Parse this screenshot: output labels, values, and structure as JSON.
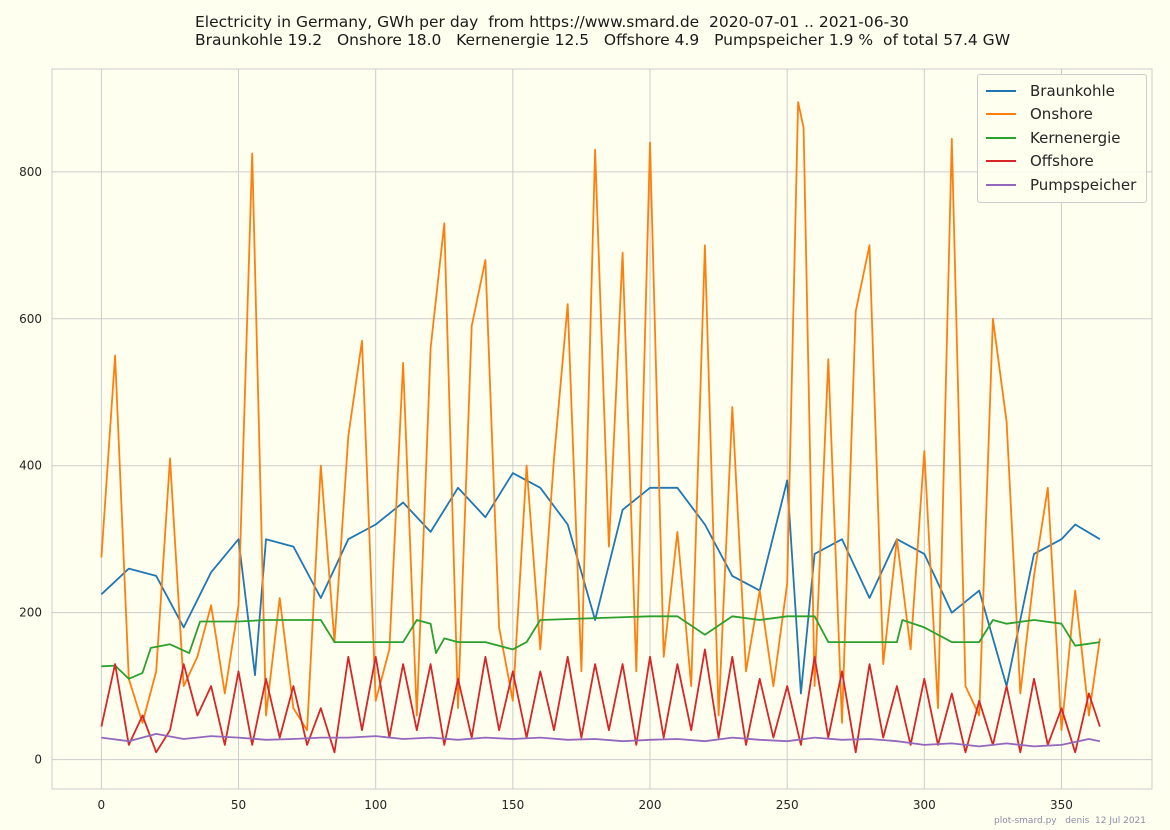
{
  "title_line1": "Electricity in Germany, GWh per day  from https://www.smard.de  2020-07-01 .. 2021-06-30",
  "title_line2": "Braunkohle 19.2   Onshore 18.0   Kernenergie 12.5   Offshore 4.9   Pumpspeicher 1.9 %  of total 57.4 GW",
  "footer": "plot-smard.py   denis  12 Jul 2021",
  "colors": {
    "background": "#fffff0",
    "grid": "#cccccc",
    "Braunkohle": "#1f77b4",
    "Onshore": "#ff7f0e",
    "Kernenergie": "#2ca02c",
    "Offshore": "#d62728",
    "Pumpspeicher": "#9467bd"
  },
  "chart_data": {
    "type": "line",
    "title": "Electricity in Germany, GWh per day  from https://www.smard.de  2020-07-01 .. 2021-06-30",
    "xlabel": "",
    "ylabel": "",
    "xlim": [
      -18,
      383
    ],
    "ylim": [
      -40,
      940
    ],
    "xticks": [
      "0",
      "50",
      "100",
      "150",
      "200",
      "250",
      "300",
      "350"
    ],
    "yticks": [
      "0",
      "200",
      "400",
      "600",
      "800"
    ],
    "grid": true,
    "legend": "top-right",
    "series": [
      {
        "name": "Braunkohle",
        "x": [
          0,
          10,
          20,
          30,
          40,
          50,
          56,
          60,
          70,
          80,
          90,
          100,
          110,
          120,
          130,
          140,
          150,
          160,
          170,
          180,
          190,
          200,
          210,
          220,
          230,
          240,
          250,
          255,
          260,
          270,
          280,
          290,
          300,
          310,
          320,
          330,
          340,
          350,
          355,
          364
        ],
        "values": [
          225,
          260,
          250,
          180,
          255,
          300,
          115,
          300,
          290,
          220,
          300,
          320,
          350,
          310,
          370,
          330,
          390,
          370,
          320,
          190,
          340,
          370,
          370,
          320,
          250,
          230,
          380,
          90,
          280,
          300,
          220,
          300,
          280,
          200,
          230,
          100,
          280,
          300,
          320,
          300
        ]
      },
      {
        "name": "Onshore",
        "x": [
          0,
          5,
          10,
          15,
          20,
          25,
          30,
          35,
          40,
          45,
          50,
          55,
          60,
          65,
          70,
          75,
          80,
          85,
          90,
          95,
          100,
          105,
          110,
          115,
          120,
          125,
          130,
          135,
          140,
          145,
          150,
          155,
          160,
          165,
          170,
          175,
          180,
          185,
          190,
          195,
          200,
          205,
          210,
          215,
          220,
          225,
          230,
          235,
          240,
          245,
          250,
          254,
          256,
          260,
          265,
          270,
          275,
          280,
          285,
          290,
          295,
          300,
          305,
          310,
          315,
          320,
          325,
          330,
          335,
          340,
          345,
          350,
          355,
          360,
          364
        ],
        "values": [
          275,
          550,
          110,
          50,
          120,
          410,
          100,
          140,
          210,
          90,
          210,
          825,
          60,
          220,
          70,
          40,
          400,
          160,
          440,
          570,
          80,
          150,
          540,
          60,
          560,
          730,
          70,
          590,
          680,
          180,
          80,
          400,
          150,
          410,
          620,
          120,
          830,
          290,
          690,
          120,
          840,
          140,
          310,
          100,
          700,
          60,
          480,
          120,
          230,
          100,
          240,
          895,
          860,
          100,
          545,
          50,
          610,
          700,
          130,
          300,
          150,
          420,
          70,
          845,
          100,
          60,
          600,
          460,
          90,
          250,
          370,
          40,
          230,
          60,
          165
        ]
      },
      {
        "name": "Kernenergie",
        "x": [
          0,
          5,
          10,
          15,
          18,
          25,
          32,
          36,
          50,
          60,
          80,
          85,
          110,
          115,
          120,
          122,
          125,
          130,
          140,
          150,
          155,
          160,
          200,
          210,
          220,
          230,
          240,
          250,
          260,
          265,
          290,
          292,
          300,
          310,
          320,
          325,
          330,
          340,
          350,
          355,
          364
        ],
        "values": [
          127,
          128,
          110,
          118,
          152,
          157,
          145,
          188,
          188,
          190,
          190,
          160,
          160,
          190,
          185,
          145,
          165,
          160,
          160,
          150,
          160,
          190,
          195,
          195,
          170,
          195,
          190,
          195,
          195,
          160,
          160,
          190,
          180,
          160,
          160,
          190,
          185,
          190,
          185,
          155,
          160
        ]
      },
      {
        "name": "Offshore",
        "x": [
          0,
          5,
          10,
          15,
          20,
          25,
          30,
          35,
          40,
          45,
          50,
          55,
          60,
          65,
          70,
          75,
          80,
          85,
          90,
          95,
          100,
          105,
          110,
          115,
          120,
          125,
          130,
          135,
          140,
          145,
          150,
          155,
          160,
          165,
          170,
          175,
          180,
          185,
          190,
          195,
          200,
          205,
          210,
          215,
          220,
          225,
          230,
          235,
          240,
          245,
          250,
          255,
          260,
          265,
          270,
          275,
          280,
          285,
          290,
          295,
          300,
          305,
          310,
          315,
          320,
          325,
          330,
          335,
          340,
          345,
          350,
          355,
          360,
          364
        ],
        "values": [
          45,
          130,
          20,
          60,
          10,
          40,
          130,
          60,
          100,
          20,
          120,
          20,
          110,
          30,
          100,
          20,
          70,
          10,
          140,
          40,
          140,
          30,
          130,
          40,
          130,
          20,
          110,
          30,
          140,
          40,
          120,
          30,
          120,
          40,
          140,
          30,
          130,
          40,
          130,
          20,
          140,
          30,
          130,
          40,
          150,
          30,
          140,
          20,
          110,
          30,
          100,
          20,
          140,
          30,
          120,
          10,
          130,
          30,
          100,
          20,
          110,
          20,
          90,
          10,
          80,
          20,
          100,
          10,
          110,
          20,
          70,
          10,
          90,
          45
        ]
      },
      {
        "name": "Pumpspeicher",
        "x": [
          0,
          10,
          20,
          30,
          40,
          50,
          60,
          70,
          80,
          90,
          100,
          110,
          120,
          130,
          140,
          150,
          160,
          170,
          180,
          190,
          200,
          210,
          220,
          230,
          240,
          250,
          260,
          270,
          280,
          290,
          300,
          310,
          320,
          330,
          340,
          350,
          360,
          364
        ],
        "values": [
          30,
          25,
          35,
          28,
          32,
          30,
          27,
          28,
          30,
          30,
          32,
          28,
          30,
          27,
          30,
          28,
          30,
          27,
          28,
          25,
          27,
          28,
          25,
          30,
          27,
          25,
          30,
          27,
          28,
          25,
          20,
          22,
          18,
          22,
          18,
          20,
          28,
          25
        ]
      }
    ]
  }
}
